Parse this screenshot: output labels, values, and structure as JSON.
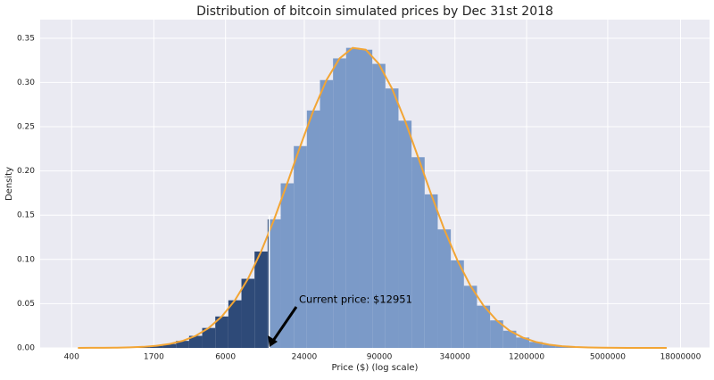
{
  "chart_data": {
    "type": "histogram",
    "title": "Distribution of bitcoin simulated prices by Dec 31st 2018",
    "x_label": "Price ($) (log scale)",
    "y_label": "Density",
    "x_log_scale": true,
    "grid": true,
    "color": "#7b9ac8",
    "highlight_color": "#2e4a78",
    "bins": [
      398,
      501,
      631,
      794,
      1000,
      1259,
      1585,
      1995,
      2512,
      3162,
      3981,
      5012,
      6310,
      7943,
      10000,
      12589,
      15849,
      19953,
      25119,
      31623,
      39811,
      50119,
      63096,
      79433,
      100000,
      125893,
      158489,
      199526,
      251189,
      316228,
      398107,
      501187,
      630957,
      794328,
      1000000,
      1258925,
      1584893,
      1995262,
      2511886,
      3162278,
      3981072,
      5011872,
      6309573,
      7943282,
      10000000,
      12589254,
      15848932
    ],
    "counts": [
      0.0,
      0.0001,
      0.0001,
      0.0003,
      0.0006,
      0.0012,
      0.0024,
      0.0044,
      0.0079,
      0.0136,
      0.0225,
      0.0355,
      0.0538,
      0.0781,
      0.1089,
      0.1453,
      0.186,
      0.2281,
      0.2683,
      0.3027,
      0.3272,
      0.3391,
      0.337,
      0.321,
      0.2932,
      0.2568,
      0.2155,
      0.1735,
      0.1339,
      0.099,
      0.0702,
      0.0477,
      0.0311,
      0.0194,
      0.0117,
      0.0067,
      0.0037,
      0.0019,
      0.001,
      0.0005,
      0.0002,
      0.0001,
      0.0,
      0.0,
      0.0,
      0.0
    ],
    "curve": {
      "color": "#f2a535",
      "x": [
        447,
        562,
        708,
        891,
        1122,
        1413,
        1778,
        2239,
        2818,
        3548,
        4467,
        5623,
        7079,
        8913,
        11220,
        14125,
        17783,
        22387,
        28184,
        35481,
        44668,
        56234,
        70795,
        89125,
        112202,
        141254,
        177828,
        223872,
        281838,
        354813,
        446684,
        562341,
        707946,
        891251,
        1122018,
        1412538,
        1778279,
        2238721,
        2818383,
        3548134,
        4466836,
        5623413,
        7079458,
        8912509,
        11220185,
        14125375
      ],
      "values": [
        0.0,
        0.0001,
        0.0001,
        0.0003,
        0.0006,
        0.0012,
        0.0024,
        0.0044,
        0.0079,
        0.0136,
        0.0225,
        0.0355,
        0.0538,
        0.0781,
        0.1089,
        0.1453,
        0.186,
        0.2281,
        0.2683,
        0.3027,
        0.3272,
        0.3391,
        0.337,
        0.321,
        0.2932,
        0.2568,
        0.2155,
        0.1735,
        0.1339,
        0.099,
        0.0702,
        0.0477,
        0.0311,
        0.0194,
        0.0117,
        0.0067,
        0.0037,
        0.0019,
        0.001,
        0.0005,
        0.0002,
        0.0001,
        0.0,
        0.0,
        0.0,
        0.0
      ]
    },
    "current_price": 12951,
    "annotation": "Current price: $12951",
    "xlim": [
      230,
      30000000
    ],
    "ylim": [
      0,
      0.371
    ],
    "xticks": [
      400,
      1700,
      6000,
      24000,
      90000,
      340000,
      1200000,
      5000000,
      18000000
    ],
    "yticks": [
      {
        "value": 0,
        "label": "0.00"
      },
      {
        "value": 0.05,
        "label": "0.05"
      },
      {
        "value": 0.1,
        "label": "0.10"
      },
      {
        "value": 0.15,
        "label": "0.15"
      },
      {
        "value": 0.2,
        "label": "0.20"
      },
      {
        "value": 0.25,
        "label": "0.25"
      },
      {
        "value": 0.3,
        "label": "0.30"
      },
      {
        "value": 0.35,
        "label": "0.35"
      }
    ]
  }
}
